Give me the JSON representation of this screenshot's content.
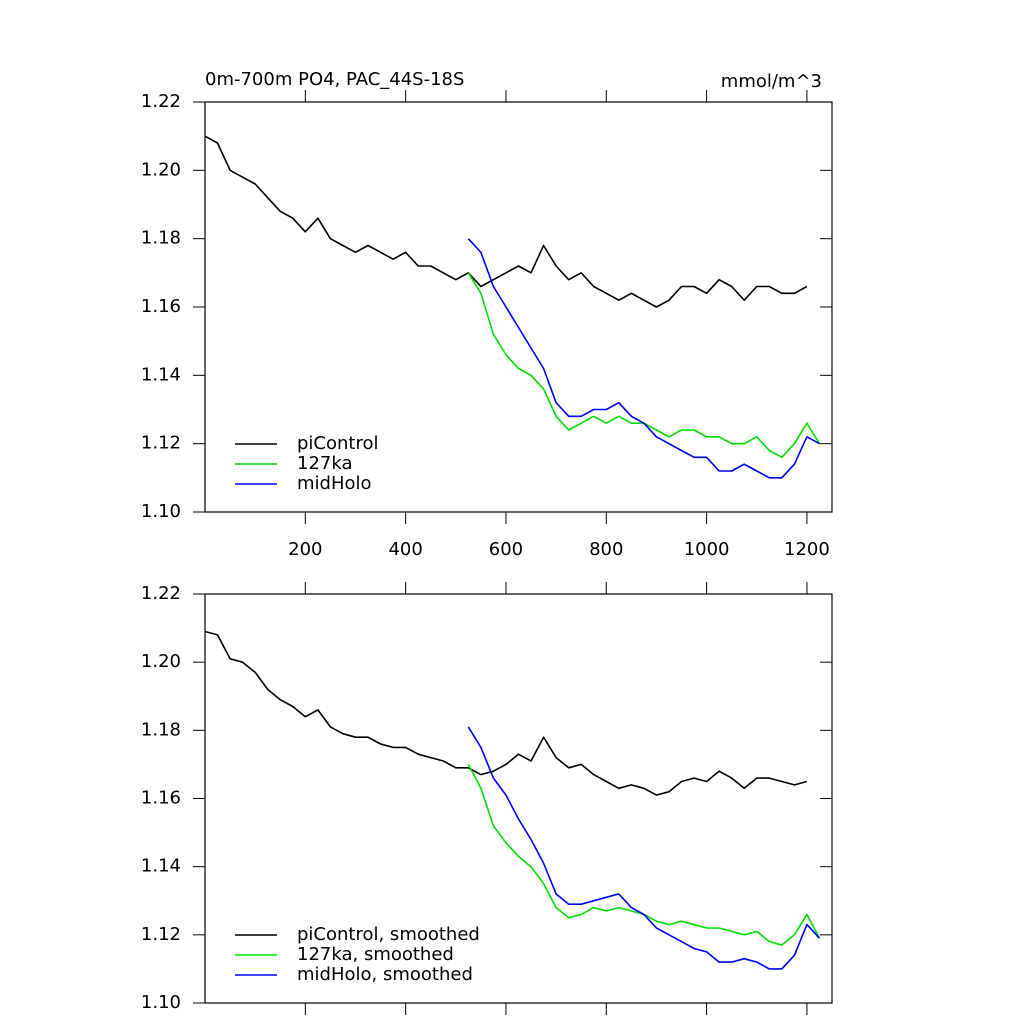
{
  "chart_data": [
    {
      "type": "line",
      "title": "0m-700m PO4, PAC_44S-18S",
      "units": "mmol/m^3",
      "xlim": [
        0,
        1250
      ],
      "xticks": [
        200,
        400,
        600,
        800,
        1000,
        1200
      ],
      "xtick_labels": true,
      "ylim": [
        1.1,
        1.22
      ],
      "yticks": [
        {
          "value": 1.1,
          "label": "1.10"
        },
        1.12,
        1.14,
        1.16,
        1.18,
        {
          "value": 1.2,
          "label": "1.20"
        },
        1.22
      ],
      "legend": "lower left",
      "series": [
        {
          "name": "piControl",
          "color": "#000000",
          "x": [
            0,
            25,
            50,
            75,
            100,
            125,
            150,
            175,
            200,
            225,
            250,
            275,
            300,
            325,
            350,
            375,
            400,
            425,
            450,
            475,
            500,
            525,
            550,
            575,
            600,
            625,
            650,
            675,
            700,
            725,
            750,
            775,
            800,
            825,
            850,
            875,
            900,
            925,
            950,
            975,
            1000,
            1025,
            1050,
            1075,
            1100,
            1125,
            1150,
            1175,
            1200
          ],
          "values": [
            1.21,
            1.208,
            1.2,
            1.198,
            1.196,
            1.192,
            1.188,
            1.186,
            1.182,
            1.186,
            1.18,
            1.178,
            1.176,
            1.178,
            1.176,
            1.174,
            1.176,
            1.172,
            1.172,
            1.17,
            1.168,
            1.17,
            1.166,
            1.168,
            1.17,
            1.172,
            1.17,
            1.178,
            1.172,
            1.168,
            1.17,
            1.166,
            1.164,
            1.162,
            1.164,
            1.162,
            1.16,
            1.162,
            1.166,
            1.166,
            1.164,
            1.168,
            1.166,
            1.162,
            1.166,
            1.166,
            1.164,
            1.164,
            1.166
          ]
        },
        {
          "name": "127ka",
          "color": "#00dd00",
          "x": [
            525,
            550,
            575,
            600,
            625,
            650,
            675,
            700,
            725,
            750,
            775,
            800,
            825,
            850,
            875,
            900,
            925,
            950,
            975,
            1000,
            1025,
            1050,
            1075,
            1100,
            1125,
            1150,
            1175,
            1200,
            1225
          ],
          "values": [
            1.17,
            1.164,
            1.152,
            1.146,
            1.142,
            1.14,
            1.136,
            1.128,
            1.124,
            1.126,
            1.128,
            1.126,
            1.128,
            1.126,
            1.126,
            1.124,
            1.122,
            1.124,
            1.124,
            1.122,
            1.122,
            1.12,
            1.12,
            1.122,
            1.118,
            1.116,
            1.12,
            1.126,
            1.12
          ]
        },
        {
          "name": "midHolo",
          "color": "#0000ff",
          "x": [
            525,
            550,
            575,
            600,
            625,
            650,
            675,
            700,
            725,
            750,
            775,
            800,
            825,
            850,
            875,
            900,
            925,
            950,
            975,
            1000,
            1025,
            1050,
            1075,
            1100,
            1125,
            1150,
            1175,
            1200,
            1225
          ],
          "values": [
            1.18,
            1.176,
            1.166,
            1.16,
            1.154,
            1.148,
            1.142,
            1.132,
            1.128,
            1.128,
            1.13,
            1.13,
            1.132,
            1.128,
            1.126,
            1.122,
            1.12,
            1.118,
            1.116,
            1.116,
            1.112,
            1.112,
            1.114,
            1.112,
            1.11,
            1.11,
            1.114,
            1.122,
            1.12
          ]
        }
      ]
    },
    {
      "type": "line",
      "xlim": [
        0,
        1250
      ],
      "xticks": [
        200,
        400,
        600,
        800,
        1000,
        1200
      ],
      "xtick_labels": false,
      "ylim": [
        1.1,
        1.22
      ],
      "yticks": [
        {
          "value": 1.1,
          "label": "1.10"
        },
        1.12,
        1.14,
        1.16,
        1.18,
        {
          "value": 1.2,
          "label": "1.20"
        },
        1.22
      ],
      "legend": "lower left",
      "series": [
        {
          "name": "piControl, smoothed",
          "color": "#000000",
          "x": [
            0,
            25,
            50,
            75,
            100,
            125,
            150,
            175,
            200,
            225,
            250,
            275,
            300,
            325,
            350,
            375,
            400,
            425,
            450,
            475,
            500,
            525,
            550,
            575,
            600,
            625,
            650,
            675,
            700,
            725,
            750,
            775,
            800,
            825,
            850,
            875,
            900,
            925,
            950,
            975,
            1000,
            1025,
            1050,
            1075,
            1100,
            1125,
            1150,
            1175,
            1200
          ],
          "values": [
            1.209,
            1.208,
            1.201,
            1.2,
            1.197,
            1.192,
            1.189,
            1.187,
            1.184,
            1.186,
            1.181,
            1.179,
            1.178,
            1.178,
            1.176,
            1.175,
            1.175,
            1.173,
            1.172,
            1.171,
            1.169,
            1.169,
            1.167,
            1.168,
            1.17,
            1.173,
            1.171,
            1.178,
            1.172,
            1.169,
            1.17,
            1.167,
            1.165,
            1.163,
            1.164,
            1.163,
            1.161,
            1.162,
            1.165,
            1.166,
            1.165,
            1.168,
            1.166,
            1.163,
            1.166,
            1.166,
            1.165,
            1.164,
            1.165
          ]
        },
        {
          "name": "127ka, smoothed",
          "color": "#00dd00",
          "x": [
            525,
            550,
            575,
            600,
            625,
            650,
            675,
            700,
            725,
            750,
            775,
            800,
            825,
            850,
            875,
            900,
            925,
            950,
            975,
            1000,
            1025,
            1050,
            1075,
            1100,
            1125,
            1150,
            1175,
            1200,
            1225
          ],
          "values": [
            1.17,
            1.163,
            1.152,
            1.147,
            1.143,
            1.14,
            1.135,
            1.128,
            1.125,
            1.126,
            1.128,
            1.127,
            1.128,
            1.127,
            1.126,
            1.124,
            1.123,
            1.124,
            1.123,
            1.122,
            1.122,
            1.121,
            1.12,
            1.121,
            1.118,
            1.117,
            1.12,
            1.126,
            1.119
          ]
        },
        {
          "name": "midHolo, smoothed",
          "color": "#0000ff",
          "x": [
            525,
            550,
            575,
            600,
            625,
            650,
            675,
            700,
            725,
            750,
            775,
            800,
            825,
            850,
            875,
            900,
            925,
            950,
            975,
            1000,
            1025,
            1050,
            1075,
            1100,
            1125,
            1150,
            1175,
            1200,
            1225
          ],
          "values": [
            1.181,
            1.175,
            1.166,
            1.161,
            1.154,
            1.148,
            1.141,
            1.132,
            1.129,
            1.129,
            1.13,
            1.131,
            1.132,
            1.128,
            1.126,
            1.122,
            1.12,
            1.118,
            1.116,
            1.115,
            1.112,
            1.112,
            1.113,
            1.112,
            1.11,
            1.11,
            1.114,
            1.123,
            1.119
          ]
        }
      ]
    }
  ]
}
